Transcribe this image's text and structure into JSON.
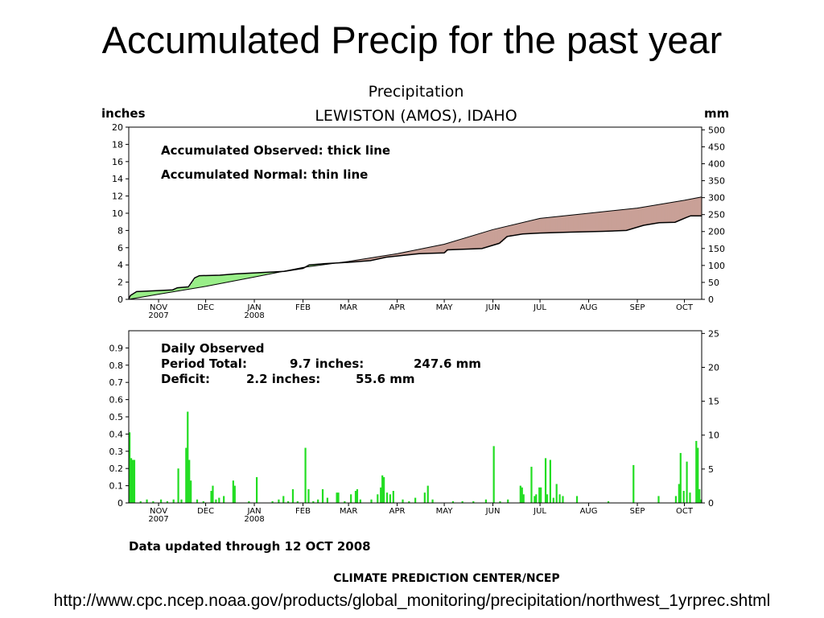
{
  "slide": {
    "title": "Accumulated Precip for the past year",
    "source_url": "http://www.cpc.ncep.noaa.gov/products/global_monitoring/precipitation/northwest_1yrprec.shtml"
  },
  "figure": {
    "title": "Precipitation",
    "station": "LEWISTON (AMOS), IDAHO",
    "left_unit": "inches",
    "right_unit": "mm",
    "updated": "Data updated through 12 OCT 2008",
    "credit": "CLIMATE PREDICTION CENTER/NCEP"
  },
  "colors": {
    "surplus": "#99ee88",
    "deficit": "#c9a097",
    "bars": "#22dd22",
    "line": "#000000"
  },
  "chart_data": [
    {
      "type": "area",
      "legend": [
        "Accumulated Observed: thick line",
        "Accumulated Normal: thin line"
      ],
      "x_start": "2007-10-13",
      "x_end": "2008-10-12",
      "month_ticks": [
        {
          "date": "2007-11-01",
          "label": "NOV",
          "sub": "2007"
        },
        {
          "date": "2007-12-01",
          "label": "DEC",
          "sub": ""
        },
        {
          "date": "2008-01-01",
          "label": "JAN",
          "sub": "2008"
        },
        {
          "date": "2008-02-01",
          "label": "FEB",
          "sub": ""
        },
        {
          "date": "2008-03-01",
          "label": "MAR",
          "sub": ""
        },
        {
          "date": "2008-04-01",
          "label": "APR",
          "sub": ""
        },
        {
          "date": "2008-05-01",
          "label": "MAY",
          "sub": ""
        },
        {
          "date": "2008-06-01",
          "label": "JUN",
          "sub": ""
        },
        {
          "date": "2008-07-01",
          "label": "JUL",
          "sub": ""
        },
        {
          "date": "2008-08-01",
          "label": "AUG",
          "sub": ""
        },
        {
          "date": "2008-09-01",
          "label": "SEP",
          "sub": ""
        },
        {
          "date": "2008-10-01",
          "label": "OCT",
          "sub": ""
        }
      ],
      "ylim": [
        0,
        20
      ],
      "yticks": [
        "0",
        "2",
        "4",
        "6",
        "8",
        "10",
        "12",
        "14",
        "16",
        "18",
        "20"
      ],
      "y2lim": [
        0,
        508
      ],
      "y2ticks": [
        "0",
        "50",
        "100",
        "150",
        "200",
        "250",
        "300",
        "350",
        "400",
        "450",
        "500"
      ],
      "observed": [
        [
          "2007-10-13",
          0.0
        ],
        [
          "2007-10-14",
          0.45
        ],
        [
          "2007-10-18",
          0.9
        ],
        [
          "2007-10-25",
          0.95
        ],
        [
          "2007-11-10",
          1.1
        ],
        [
          "2007-11-13",
          1.35
        ],
        [
          "2007-11-20",
          1.45
        ],
        [
          "2007-11-24",
          2.5
        ],
        [
          "2007-11-27",
          2.75
        ],
        [
          "2007-12-10",
          2.8
        ],
        [
          "2007-12-20",
          2.95
        ],
        [
          "2008-01-05",
          3.1
        ],
        [
          "2008-01-20",
          3.25
        ],
        [
          "2008-02-01",
          3.6
        ],
        [
          "2008-02-05",
          4.0
        ],
        [
          "2008-02-15",
          4.15
        ],
        [
          "2008-03-01",
          4.3
        ],
        [
          "2008-03-15",
          4.5
        ],
        [
          "2008-03-25",
          4.9
        ],
        [
          "2008-04-15",
          5.3
        ],
        [
          "2008-05-01",
          5.4
        ],
        [
          "2008-05-03",
          5.75
        ],
        [
          "2008-05-25",
          5.9
        ],
        [
          "2008-06-05",
          6.5
        ],
        [
          "2008-06-10",
          7.3
        ],
        [
          "2008-06-20",
          7.6
        ],
        [
          "2008-07-01",
          7.7
        ],
        [
          "2008-07-20",
          7.8
        ],
        [
          "2008-08-10",
          7.9
        ],
        [
          "2008-08-25",
          8.0
        ],
        [
          "2008-09-05",
          8.6
        ],
        [
          "2008-09-15",
          8.9
        ],
        [
          "2008-09-25",
          8.95
        ],
        [
          "2008-10-02",
          9.5
        ],
        [
          "2008-10-05",
          9.7
        ],
        [
          "2008-10-12",
          9.7
        ]
      ],
      "normal": [
        [
          "2007-10-13",
          0.0
        ],
        [
          "2007-11-01",
          0.6
        ],
        [
          "2007-12-01",
          1.5
        ],
        [
          "2008-01-01",
          2.6
        ],
        [
          "2008-02-01",
          3.7
        ],
        [
          "2008-03-01",
          4.4
        ],
        [
          "2008-04-01",
          5.3
        ],
        [
          "2008-05-01",
          6.4
        ],
        [
          "2008-06-01",
          8.1
        ],
        [
          "2008-07-01",
          9.4
        ],
        [
          "2008-08-01",
          10.0
        ],
        [
          "2008-09-01",
          10.6
        ],
        [
          "2008-10-01",
          11.5
        ],
        [
          "2008-10-12",
          11.9
        ]
      ]
    },
    {
      "type": "bar",
      "legend": [
        "Daily Observed",
        "Period Total:",
        "9.7 inches:",
        "247.6 mm",
        "Deficit:",
        "2.2 inches:",
        "55.6 mm"
      ],
      "ylim": [
        0,
        1.0
      ],
      "yticks": [
        "0",
        "0.1",
        "0.2",
        "0.3",
        "0.4",
        "0.5",
        "0.6",
        "0.7",
        "0.8",
        "0.9"
      ],
      "y2lim": [
        0,
        25.4
      ],
      "y2ticks": [
        "0",
        "5",
        "10",
        "15",
        "20",
        "25"
      ],
      "daily": [
        [
          "2007-10-13",
          0.41
        ],
        [
          "2007-10-14",
          0.26
        ],
        [
          "2007-10-15",
          0.25
        ],
        [
          "2007-10-16",
          0.25
        ],
        [
          "2007-10-20",
          0.01
        ],
        [
          "2007-10-24",
          0.02
        ],
        [
          "2007-10-28",
          0.01
        ],
        [
          "2007-11-02",
          0.02
        ],
        [
          "2007-11-06",
          0.01
        ],
        [
          "2007-11-10",
          0.02
        ],
        [
          "2007-11-13",
          0.2
        ],
        [
          "2007-11-15",
          0.02
        ],
        [
          "2007-11-18",
          0.32
        ],
        [
          "2007-11-19",
          0.53
        ],
        [
          "2007-11-20",
          0.25
        ],
        [
          "2007-11-21",
          0.13
        ],
        [
          "2007-11-25",
          0.02
        ],
        [
          "2007-11-29",
          0.01
        ],
        [
          "2007-12-04",
          0.07
        ],
        [
          "2007-12-05",
          0.1
        ],
        [
          "2007-12-07",
          0.02
        ],
        [
          "2007-12-09",
          0.03
        ],
        [
          "2007-12-12",
          0.04
        ],
        [
          "2007-12-18",
          0.13
        ],
        [
          "2007-12-19",
          0.1
        ],
        [
          "2007-12-28",
          0.01
        ],
        [
          "2008-01-02",
          0.15
        ],
        [
          "2008-01-12",
          0.01
        ],
        [
          "2008-01-16",
          0.02
        ],
        [
          "2008-01-19",
          0.04
        ],
        [
          "2008-01-22",
          0.01
        ],
        [
          "2008-01-25",
          0.08
        ],
        [
          "2008-01-28",
          0.01
        ],
        [
          "2008-02-02",
          0.32
        ],
        [
          "2008-02-04",
          0.08
        ],
        [
          "2008-02-07",
          0.01
        ],
        [
          "2008-02-10",
          0.02
        ],
        [
          "2008-02-13",
          0.08
        ],
        [
          "2008-02-16",
          0.03
        ],
        [
          "2008-02-22",
          0.06
        ],
        [
          "2008-02-23",
          0.06
        ],
        [
          "2008-02-27",
          0.01
        ],
        [
          "2008-03-02",
          0.05
        ],
        [
          "2008-03-05",
          0.07
        ],
        [
          "2008-03-06",
          0.08
        ],
        [
          "2008-03-08",
          0.02
        ],
        [
          "2008-03-15",
          0.02
        ],
        [
          "2008-03-19",
          0.05
        ],
        [
          "2008-03-21",
          0.09
        ],
        [
          "2008-03-22",
          0.16
        ],
        [
          "2008-03-23",
          0.15
        ],
        [
          "2008-03-25",
          0.06
        ],
        [
          "2008-03-27",
          0.05
        ],
        [
          "2008-03-29",
          0.07
        ],
        [
          "2008-04-04",
          0.02
        ],
        [
          "2008-04-08",
          0.01
        ],
        [
          "2008-04-12",
          0.03
        ],
        [
          "2008-04-18",
          0.06
        ],
        [
          "2008-04-20",
          0.1
        ],
        [
          "2008-04-23",
          0.02
        ],
        [
          "2008-05-06",
          0.01
        ],
        [
          "2008-05-12",
          0.01
        ],
        [
          "2008-05-19",
          0.01
        ],
        [
          "2008-05-27",
          0.02
        ],
        [
          "2008-06-01",
          0.33
        ],
        [
          "2008-06-05",
          0.01
        ],
        [
          "2008-06-10",
          0.02
        ],
        [
          "2008-06-18",
          0.1
        ],
        [
          "2008-06-19",
          0.09
        ],
        [
          "2008-06-20",
          0.05
        ],
        [
          "2008-06-25",
          0.21
        ],
        [
          "2008-06-27",
          0.04
        ],
        [
          "2008-06-28",
          0.05
        ],
        [
          "2008-06-30",
          0.09
        ],
        [
          "2008-07-01",
          0.09
        ],
        [
          "2008-07-04",
          0.26
        ],
        [
          "2008-07-05",
          0.05
        ],
        [
          "2008-07-07",
          0.25
        ],
        [
          "2008-07-09",
          0.03
        ],
        [
          "2008-07-11",
          0.11
        ],
        [
          "2008-07-13",
          0.05
        ],
        [
          "2008-07-15",
          0.04
        ],
        [
          "2008-07-24",
          0.04
        ],
        [
          "2008-08-13",
          0.01
        ],
        [
          "2008-08-29",
          0.22
        ],
        [
          "2008-09-14",
          0.04
        ],
        [
          "2008-09-25",
          0.04
        ],
        [
          "2008-09-27",
          0.11
        ],
        [
          "2008-09-28",
          0.29
        ],
        [
          "2008-09-30",
          0.07
        ],
        [
          "2008-10-02",
          0.24
        ],
        [
          "2008-10-04",
          0.06
        ],
        [
          "2008-10-08",
          0.36
        ],
        [
          "2008-10-09",
          0.32
        ],
        [
          "2008-10-10",
          0.08
        ],
        [
          "2008-10-11",
          0.02
        ]
      ]
    }
  ]
}
